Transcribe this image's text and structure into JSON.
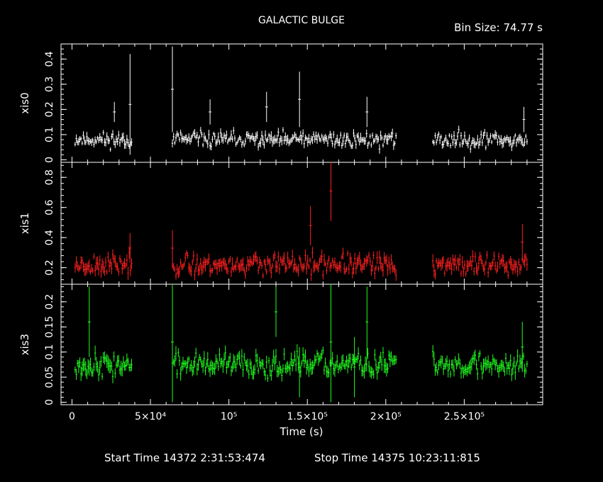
{
  "chart_data": {
    "type": "line",
    "title": "GALACTIC BULGE",
    "bin_size_label": "Bin Size: 74.77 s",
    "xlabel": "Time (s)",
    "xlim": [
      -7000,
      300000
    ],
    "x_ticks": [
      {
        "value": 0,
        "label": "0"
      },
      {
        "value": 50000,
        "label": "5×10⁴"
      },
      {
        "value": 100000,
        "label": "10⁵"
      },
      {
        "value": 150000,
        "label": "1.5×10⁵"
      },
      {
        "value": 200000,
        "label": "2×10⁵"
      },
      {
        "value": 250000,
        "label": "2.5×10⁵"
      }
    ],
    "footer": {
      "start_label": "Start Time 14372  2:31:53:474",
      "stop_label": "Stop Time 14375 10:23:11:815"
    },
    "segments": [
      [
        2000,
        38000
      ],
      [
        64000,
        207000
      ],
      [
        230000,
        290000
      ]
    ],
    "panels": [
      {
        "name": "xis0",
        "ylabel": "xis0",
        "color": "#ffffff",
        "ylim": [
          -0.01,
          0.46
        ],
        "y_ticks": [
          0,
          0.1,
          0.2,
          0.3,
          0.4
        ],
        "y_tick_labels": [
          "0",
          "0.1",
          "0.2",
          "0.3",
          "0.4"
        ],
        "baseline": 0.08,
        "noise": 0.022,
        "seed": 11,
        "spikes": [
          {
            "x": 27000,
            "y": 0.19,
            "err": 0.04
          },
          {
            "x": 37000,
            "y": 0.22,
            "err": 0.2
          },
          {
            "x": 64000,
            "y": 0.28,
            "err": 0.17
          },
          {
            "x": 88000,
            "y": 0.19,
            "err": 0.05
          },
          {
            "x": 124000,
            "y": 0.21,
            "err": 0.06
          },
          {
            "x": 145000,
            "y": 0.24,
            "err": 0.11
          },
          {
            "x": 188000,
            "y": 0.19,
            "err": 0.06
          },
          {
            "x": 288000,
            "y": 0.16,
            "err": 0.05
          }
        ]
      },
      {
        "name": "xis1",
        "ylabel": "xis1",
        "color": "#ff2020",
        "ylim": [
          0.09,
          0.9
        ],
        "y_ticks": [
          0.2,
          0.4,
          0.6,
          0.8
        ],
        "y_tick_labels": [
          "0.2",
          "0.4",
          "0.6",
          "0.8"
        ],
        "baseline": 0.22,
        "noise": 0.05,
        "seed": 23,
        "spikes": [
          {
            "x": 37000,
            "y": 0.33,
            "err": 0.1
          },
          {
            "x": 64000,
            "y": 0.33,
            "err": 0.12
          },
          {
            "x": 152000,
            "y": 0.48,
            "err": 0.13
          },
          {
            "x": 165000,
            "y": 0.71,
            "err": 0.2
          },
          {
            "x": 287000,
            "y": 0.37,
            "err": 0.12
          }
        ]
      },
      {
        "name": "xis3",
        "ylabel": "xis3",
        "color": "#20ff20",
        "ylim": [
          -0.005,
          0.235
        ],
        "y_ticks": [
          0,
          0.05,
          0.1,
          0.15,
          0.2
        ],
        "y_tick_labels": [
          "0",
          "0.05",
          "0.1",
          "0.15",
          "0.2"
        ],
        "baseline": 0.075,
        "noise": 0.017,
        "seed": 37,
        "spikes": [
          {
            "x": 11000,
            "y": 0.16,
            "err": 0.07
          },
          {
            "x": 64000,
            "y": 0.12,
            "err": 0.12
          },
          {
            "x": 130000,
            "y": 0.18,
            "err": 0.05
          },
          {
            "x": 145000,
            "y": 0.06,
            "err": 0.05
          },
          {
            "x": 165000,
            "y": 0.12,
            "err": 0.12
          },
          {
            "x": 180000,
            "y": 0.07,
            "err": 0.06
          },
          {
            "x": 188000,
            "y": 0.16,
            "err": 0.07
          },
          {
            "x": 287000,
            "y": 0.11,
            "err": 0.05
          }
        ]
      }
    ]
  }
}
